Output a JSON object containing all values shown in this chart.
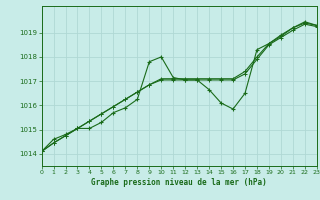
{
  "title": "Graphe pression niveau de la mer (hPa)",
  "bg_color": "#c8ece8",
  "grid_color": "#b0d8d4",
  "line_color": "#1a6b1a",
  "xlim": [
    0,
    23
  ],
  "ylim": [
    1013.5,
    1020.1
  ],
  "yticks": [
    1014,
    1015,
    1016,
    1017,
    1018,
    1019
  ],
  "xticks": [
    0,
    1,
    2,
    3,
    4,
    5,
    6,
    7,
    8,
    9,
    10,
    11,
    12,
    13,
    14,
    15,
    16,
    17,
    18,
    19,
    20,
    21,
    22,
    23
  ],
  "series1": [
    [
      0,
      1014.1
    ],
    [
      1,
      1014.6
    ],
    [
      2,
      1014.8
    ],
    [
      3,
      1015.05
    ],
    [
      4,
      1015.05
    ],
    [
      5,
      1015.3
    ],
    [
      6,
      1015.7
    ],
    [
      7,
      1015.9
    ],
    [
      8,
      1016.25
    ],
    [
      9,
      1017.8
    ],
    [
      10,
      1018.0
    ],
    [
      11,
      1017.15
    ],
    [
      12,
      1017.05
    ],
    [
      13,
      1017.05
    ],
    [
      14,
      1016.65
    ],
    [
      15,
      1016.1
    ],
    [
      16,
      1015.85
    ],
    [
      17,
      1016.5
    ],
    [
      18,
      1018.3
    ],
    [
      19,
      1018.55
    ],
    [
      20,
      1018.9
    ],
    [
      21,
      1019.2
    ],
    [
      22,
      1019.45
    ],
    [
      23,
      1019.3
    ]
  ],
  "series2": [
    [
      0,
      1014.1
    ],
    [
      1,
      1014.45
    ],
    [
      2,
      1014.75
    ],
    [
      3,
      1015.05
    ],
    [
      4,
      1015.35
    ],
    [
      5,
      1015.65
    ],
    [
      6,
      1015.95
    ],
    [
      7,
      1016.25
    ],
    [
      8,
      1016.55
    ],
    [
      9,
      1016.85
    ],
    [
      10,
      1017.1
    ],
    [
      11,
      1017.1
    ],
    [
      12,
      1017.1
    ],
    [
      13,
      1017.1
    ],
    [
      14,
      1017.1
    ],
    [
      15,
      1017.1
    ],
    [
      16,
      1017.1
    ],
    [
      17,
      1017.4
    ],
    [
      18,
      1018.0
    ],
    [
      19,
      1018.55
    ],
    [
      20,
      1018.85
    ],
    [
      21,
      1019.2
    ],
    [
      22,
      1019.4
    ],
    [
      23,
      1019.3
    ]
  ],
  "series3": [
    [
      0,
      1014.1
    ],
    [
      1,
      1014.45
    ],
    [
      2,
      1014.75
    ],
    [
      3,
      1015.05
    ],
    [
      4,
      1015.35
    ],
    [
      5,
      1015.65
    ],
    [
      6,
      1015.95
    ],
    [
      7,
      1016.25
    ],
    [
      8,
      1016.55
    ],
    [
      9,
      1016.85
    ],
    [
      10,
      1017.05
    ],
    [
      11,
      1017.05
    ],
    [
      12,
      1017.05
    ],
    [
      13,
      1017.05
    ],
    [
      14,
      1017.05
    ],
    [
      15,
      1017.05
    ],
    [
      16,
      1017.05
    ],
    [
      17,
      1017.3
    ],
    [
      18,
      1017.9
    ],
    [
      19,
      1018.5
    ],
    [
      20,
      1018.8
    ],
    [
      21,
      1019.1
    ],
    [
      22,
      1019.35
    ],
    [
      23,
      1019.25
    ]
  ]
}
